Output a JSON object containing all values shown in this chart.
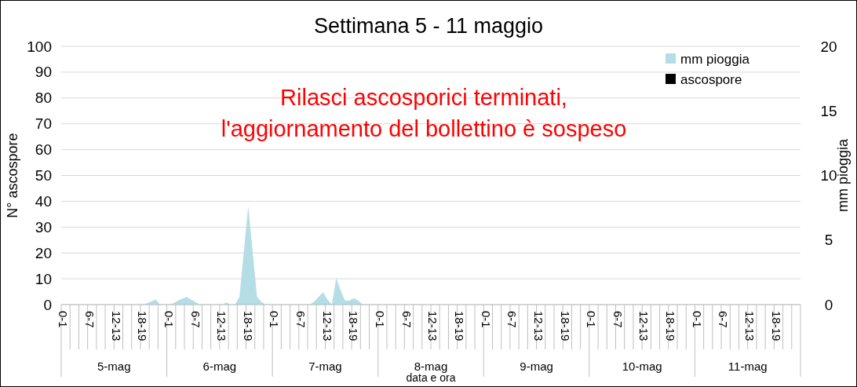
{
  "chart_data": {
    "type": "area",
    "title": "Settimana 5 - 11 maggio",
    "xlabel": "data e ora",
    "ylabel": "N° ascospore",
    "y2label": "mm pioggia",
    "annotations": [
      "Rilasci ascosporici terminati,\nl'aggiornamento del bollettino è sospeso",
      "5-mag",
      "6-mag",
      "7-mag",
      "8-mag",
      "9-mag",
      "10-mag",
      "11-mag"
    ],
    "categories": [
      "0-1",
      null,
      null,
      null,
      null,
      null,
      "6-7",
      null,
      null,
      null,
      null,
      null,
      "12-13",
      null,
      null,
      null,
      null,
      null,
      "18-19",
      null,
      null,
      null,
      null,
      null,
      "0-1",
      null,
      null,
      null,
      null,
      null,
      "6-7",
      null,
      null,
      null,
      null,
      null,
      "12-13",
      null,
      null,
      null,
      null,
      null,
      "18-19",
      null,
      null,
      null,
      null,
      null,
      "0-1",
      null,
      null,
      null,
      null,
      null,
      "6-7",
      null,
      null,
      null,
      null,
      null,
      "12-13",
      null,
      null,
      null,
      null,
      null,
      "18-19",
      null,
      null,
      null,
      null,
      null,
      "0-1",
      null,
      null,
      null,
      null,
      null,
      "6-7",
      null,
      null,
      null,
      null,
      null,
      "12-13",
      null,
      null,
      null,
      null,
      null,
      "18-19",
      null,
      null,
      null,
      null,
      null,
      "0-1",
      null,
      null,
      null,
      null,
      null,
      "6-7",
      null,
      null,
      null,
      null,
      null,
      "12-13",
      null,
      null,
      null,
      null,
      null,
      "18-19",
      null,
      null,
      null,
      null,
      null,
      "0-1",
      null,
      null,
      null,
      null,
      null,
      "6-7",
      null,
      null,
      null,
      null,
      null,
      "12-13",
      null,
      null,
      null,
      null,
      null,
      "18-19",
      null,
      null,
      null,
      null,
      null,
      "0-1",
      null,
      null,
      null,
      null,
      null,
      "6-7",
      null,
      null,
      null,
      null,
      null,
      "12-13",
      null,
      null,
      null,
      null,
      null,
      "18-19",
      null,
      null,
      null,
      null,
      null
    ],
    "series": [
      {
        "name": "mm pioggia",
        "axis": "y2",
        "color": "#b4dde6",
        "values": [
          0,
          0,
          0,
          0,
          0,
          0,
          0,
          0,
          0,
          0,
          0,
          0,
          0,
          0,
          0,
          0,
          0,
          0,
          0,
          0.1,
          0.25,
          0.4,
          0,
          0,
          0,
          0.1,
          0.3,
          0.45,
          0.6,
          0.4,
          0.2,
          0,
          0,
          0,
          0,
          0,
          0,
          0.15,
          0,
          0,
          0.6,
          4.1,
          7.6,
          4.1,
          0.6,
          0.2,
          0,
          0,
          0,
          0,
          0,
          0,
          0,
          0,
          0,
          0,
          0,
          0.25,
          0.6,
          0.95,
          0.4,
          0,
          2.05,
          1.1,
          0.3,
          0.3,
          0.5,
          0.3,
          0,
          0,
          0,
          0,
          0,
          0,
          0,
          0,
          0,
          0,
          0,
          0,
          0,
          0,
          0,
          0,
          0,
          0,
          0,
          0,
          0,
          0,
          0,
          0,
          0,
          0,
          0,
          0,
          0,
          0,
          0,
          0,
          0,
          0,
          0,
          0,
          0,
          0,
          0,
          0,
          0,
          0,
          0,
          0,
          0,
          0,
          0,
          0,
          0,
          0,
          0,
          0,
          0,
          0,
          0,
          0,
          0,
          0,
          0,
          0,
          0,
          0,
          0,
          0,
          0,
          0,
          0,
          0,
          0,
          0,
          0,
          0,
          0,
          0,
          0,
          0,
          0,
          0,
          0,
          0,
          0,
          0,
          0,
          0,
          0,
          0,
          0,
          0,
          0,
          0,
          0,
          0,
          0,
          0,
          0,
          0,
          0,
          0,
          0,
          0
        ]
      },
      {
        "name": "ascospore",
        "type": "bar",
        "color": "#000000",
        "values": [
          0,
          0,
          0,
          0,
          0,
          0,
          0,
          0,
          0,
          0,
          0,
          0,
          0,
          0,
          0,
          0,
          0,
          0,
          0,
          0,
          0,
          0,
          0,
          0,
          0,
          0,
          0,
          0,
          0,
          0,
          0,
          0,
          0,
          0,
          0,
          0,
          0,
          0,
          0,
          0,
          0,
          0,
          0,
          0,
          0,
          0,
          0,
          0,
          0,
          0,
          0,
          0,
          0,
          0,
          0,
          0,
          0,
          0,
          0,
          0,
          0,
          0,
          0,
          0,
          0,
          0,
          0,
          0,
          0,
          0,
          0,
          0,
          0,
          0,
          0,
          0,
          0,
          0,
          0,
          0,
          0,
          0,
          0,
          0,
          0,
          0,
          0,
          0,
          0,
          0,
          0,
          0,
          0,
          0,
          0,
          0,
          0,
          0,
          0,
          0,
          0,
          0,
          0,
          0,
          0,
          0,
          0,
          0,
          0,
          0,
          0,
          0,
          0,
          0,
          0,
          0,
          0,
          0,
          0,
          0,
          0,
          0,
          0,
          0,
          0,
          0,
          0,
          0,
          0,
          0,
          0,
          0,
          0,
          0,
          0,
          0,
          0,
          0,
          0,
          0,
          0,
          0,
          0,
          0,
          0,
          0,
          0,
          0,
          0,
          0,
          0,
          0,
          0,
          0,
          0,
          0,
          0,
          0,
          0,
          0,
          0,
          0,
          0,
          0,
          0,
          0,
          0,
          0
        ]
      }
    ],
    "ylim": [
      0,
      100
    ],
    "yticks": [
      0,
      10,
      20,
      30,
      40,
      50,
      60,
      70,
      80,
      90,
      100
    ],
    "y2lim": [
      0,
      20
    ],
    "y2ticks": [
      0,
      5,
      10,
      15,
      20
    ],
    "grid": "y",
    "legend": "top right"
  }
}
